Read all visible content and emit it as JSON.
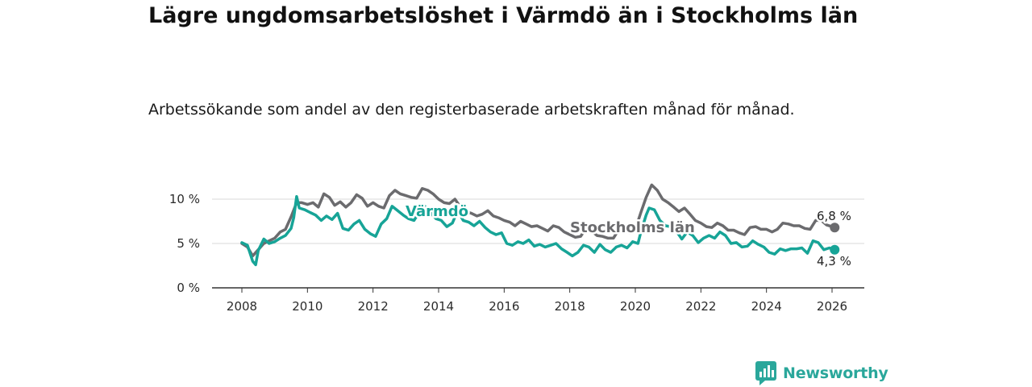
{
  "header": {
    "title": "Lägre ungdomsarbetslöshet i Värmdö än i Stockholms län",
    "subtitle": "Arbetssökande som andel av den registerbaserade arbetskraften månad för månad."
  },
  "brand": {
    "name": "Newsworthy",
    "icon": "newsworthy-logo-icon",
    "color": "#2aa79b"
  },
  "chart_data": {
    "type": "line",
    "title": "Lägre ungdomsarbetslöshet i Värmdö än i Stockholms län",
    "xlabel": "",
    "ylabel": "",
    "xlim": [
      2007.4,
      2027.0
    ],
    "ylim": [
      0,
      11
    ],
    "x_ticks": [
      2008,
      2010,
      2012,
      2014,
      2016,
      2018,
      2020,
      2022,
      2024,
      2026
    ],
    "x_tick_labels": [
      "2008",
      "2010",
      "2012",
      "2014",
      "2016",
      "2018",
      "2020",
      "2022",
      "2024",
      "2026"
    ],
    "y_ticks": [
      0,
      5,
      10
    ],
    "y_tick_labels": [
      "0 %",
      "5 %",
      "10 %"
    ],
    "grid": true,
    "series": [
      {
        "name": "Stockholms län",
        "label": "Stockholms län",
        "color": "#6b6b6e",
        "end_label": "6,8 %",
        "points": [
          [
            2008.0,
            5.0
          ],
          [
            2008.17,
            4.6
          ],
          [
            2008.33,
            3.6
          ],
          [
            2008.5,
            4.3
          ],
          [
            2008.67,
            5.0
          ],
          [
            2008.83,
            5.3
          ],
          [
            2009.0,
            5.6
          ],
          [
            2009.17,
            6.3
          ],
          [
            2009.33,
            6.6
          ],
          [
            2009.5,
            8.0
          ],
          [
            2009.67,
            9.6
          ],
          [
            2009.83,
            9.6
          ],
          [
            2010.0,
            9.4
          ],
          [
            2010.17,
            9.6
          ],
          [
            2010.33,
            9.1
          ],
          [
            2010.5,
            10.6
          ],
          [
            2010.67,
            10.2
          ],
          [
            2010.83,
            9.3
          ],
          [
            2011.0,
            9.7
          ],
          [
            2011.17,
            9.1
          ],
          [
            2011.33,
            9.6
          ],
          [
            2011.5,
            10.5
          ],
          [
            2011.67,
            10.1
          ],
          [
            2011.83,
            9.2
          ],
          [
            2012.0,
            9.6
          ],
          [
            2012.17,
            9.2
          ],
          [
            2012.33,
            9.0
          ],
          [
            2012.5,
            10.4
          ],
          [
            2012.67,
            11.0
          ],
          [
            2012.83,
            10.6
          ],
          [
            2013.0,
            10.4
          ],
          [
            2013.17,
            10.2
          ],
          [
            2013.33,
            10.1
          ],
          [
            2013.5,
            11.2
          ],
          [
            2013.67,
            11.0
          ],
          [
            2013.83,
            10.6
          ],
          [
            2014.0,
            10.0
          ],
          [
            2014.17,
            9.6
          ],
          [
            2014.33,
            9.5
          ],
          [
            2014.5,
            10.0
          ],
          [
            2014.67,
            9.1
          ],
          [
            2014.83,
            8.6
          ],
          [
            2015.0,
            8.4
          ],
          [
            2015.17,
            8.1
          ],
          [
            2015.33,
            8.3
          ],
          [
            2015.5,
            8.7
          ],
          [
            2015.67,
            8.1
          ],
          [
            2015.83,
            7.9
          ],
          [
            2016.0,
            7.6
          ],
          [
            2016.17,
            7.4
          ],
          [
            2016.33,
            7.0
          ],
          [
            2016.5,
            7.5
          ],
          [
            2016.67,
            7.2
          ],
          [
            2016.83,
            6.9
          ],
          [
            2017.0,
            7.0
          ],
          [
            2017.17,
            6.7
          ],
          [
            2017.33,
            6.4
          ],
          [
            2017.5,
            7.0
          ],
          [
            2017.67,
            6.8
          ],
          [
            2017.83,
            6.3
          ],
          [
            2018.0,
            6.0
          ],
          [
            2018.17,
            5.7
          ],
          [
            2018.33,
            5.8
          ],
          [
            2018.5,
            6.7
          ],
          [
            2018.67,
            6.4
          ],
          [
            2018.83,
            5.9
          ],
          [
            2019.0,
            5.8
          ],
          [
            2019.17,
            5.6
          ],
          [
            2019.33,
            5.6
          ],
          [
            2019.5,
            6.6
          ],
          [
            2019.67,
            6.5
          ],
          [
            2019.83,
            6.2
          ],
          [
            2020.0,
            6.6
          ],
          [
            2020.17,
            8.5
          ],
          [
            2020.33,
            10.2
          ],
          [
            2020.5,
            11.6
          ],
          [
            2020.67,
            11.0
          ],
          [
            2020.83,
            10.0
          ],
          [
            2021.0,
            9.6
          ],
          [
            2021.17,
            9.1
          ],
          [
            2021.33,
            8.6
          ],
          [
            2021.5,
            9.0
          ],
          [
            2021.67,
            8.3
          ],
          [
            2021.83,
            7.6
          ],
          [
            2022.0,
            7.3
          ],
          [
            2022.17,
            6.9
          ],
          [
            2022.33,
            6.8
          ],
          [
            2022.5,
            7.3
          ],
          [
            2022.67,
            7.0
          ],
          [
            2022.83,
            6.5
          ],
          [
            2023.0,
            6.5
          ],
          [
            2023.17,
            6.2
          ],
          [
            2023.33,
            6.0
          ],
          [
            2023.5,
            6.8
          ],
          [
            2023.67,
            6.9
          ],
          [
            2023.83,
            6.6
          ],
          [
            2024.0,
            6.6
          ],
          [
            2024.17,
            6.3
          ],
          [
            2024.33,
            6.6
          ],
          [
            2024.5,
            7.3
          ],
          [
            2024.67,
            7.2
          ],
          [
            2024.83,
            7.0
          ],
          [
            2025.0,
            7.0
          ],
          [
            2025.17,
            6.7
          ],
          [
            2025.33,
            6.6
          ],
          [
            2025.5,
            7.6
          ],
          [
            2025.67,
            7.6
          ],
          [
            2025.83,
            7.1
          ],
          [
            2026.08,
            6.8
          ]
        ]
      },
      {
        "name": "Värmdö",
        "label": "Värmdö",
        "color": "#17a497",
        "end_label": "4,3 %",
        "points": [
          [
            2008.0,
            5.1
          ],
          [
            2008.17,
            4.8
          ],
          [
            2008.33,
            3.0
          ],
          [
            2008.42,
            2.6
          ],
          [
            2008.5,
            4.2
          ],
          [
            2008.67,
            5.5
          ],
          [
            2008.83,
            5.0
          ],
          [
            2009.0,
            5.2
          ],
          [
            2009.17,
            5.6
          ],
          [
            2009.33,
            5.9
          ],
          [
            2009.5,
            6.7
          ],
          [
            2009.58,
            7.9
          ],
          [
            2009.67,
            10.3
          ],
          [
            2009.75,
            9.0
          ],
          [
            2009.92,
            8.8
          ],
          [
            2010.08,
            8.5
          ],
          [
            2010.25,
            8.2
          ],
          [
            2010.42,
            7.6
          ],
          [
            2010.58,
            8.1
          ],
          [
            2010.75,
            7.7
          ],
          [
            2010.92,
            8.4
          ],
          [
            2011.08,
            6.7
          ],
          [
            2011.25,
            6.5
          ],
          [
            2011.42,
            7.2
          ],
          [
            2011.58,
            7.6
          ],
          [
            2011.75,
            6.6
          ],
          [
            2011.92,
            6.1
          ],
          [
            2012.08,
            5.8
          ],
          [
            2012.25,
            7.2
          ],
          [
            2012.42,
            7.8
          ],
          [
            2012.58,
            9.2
          ],
          [
            2012.75,
            8.7
          ],
          [
            2012.92,
            8.2
          ],
          [
            2013.08,
            7.8
          ],
          [
            2013.25,
            7.6
          ],
          [
            2013.42,
            8.6
          ],
          [
            2013.58,
            9.2
          ],
          [
            2013.75,
            8.5
          ],
          [
            2013.92,
            7.8
          ],
          [
            2014.08,
            7.6
          ],
          [
            2014.25,
            6.9
          ],
          [
            2014.42,
            7.3
          ],
          [
            2014.58,
            8.7
          ],
          [
            2014.75,
            7.6
          ],
          [
            2014.92,
            7.4
          ],
          [
            2015.08,
            7.0
          ],
          [
            2015.25,
            7.5
          ],
          [
            2015.42,
            6.8
          ],
          [
            2015.58,
            6.3
          ],
          [
            2015.75,
            6.0
          ],
          [
            2015.92,
            6.2
          ],
          [
            2016.08,
            5.0
          ],
          [
            2016.25,
            4.8
          ],
          [
            2016.42,
            5.2
          ],
          [
            2016.58,
            5.0
          ],
          [
            2016.75,
            5.4
          ],
          [
            2016.92,
            4.7
          ],
          [
            2017.08,
            4.9
          ],
          [
            2017.25,
            4.6
          ],
          [
            2017.42,
            4.8
          ],
          [
            2017.58,
            5.0
          ],
          [
            2017.75,
            4.4
          ],
          [
            2017.92,
            4.0
          ],
          [
            2018.08,
            3.6
          ],
          [
            2018.25,
            4.0
          ],
          [
            2018.42,
            4.8
          ],
          [
            2018.58,
            4.6
          ],
          [
            2018.75,
            4.0
          ],
          [
            2018.92,
            4.9
          ],
          [
            2019.08,
            4.3
          ],
          [
            2019.25,
            4.0
          ],
          [
            2019.42,
            4.6
          ],
          [
            2019.58,
            4.8
          ],
          [
            2019.75,
            4.5
          ],
          [
            2019.92,
            5.2
          ],
          [
            2020.08,
            5.0
          ],
          [
            2020.17,
            6.3
          ],
          [
            2020.33,
            8.2
          ],
          [
            2020.42,
            9.0
          ],
          [
            2020.58,
            8.8
          ],
          [
            2020.75,
            7.6
          ],
          [
            2020.92,
            7.0
          ],
          [
            2021.08,
            6.9
          ],
          [
            2021.25,
            6.4
          ],
          [
            2021.42,
            5.5
          ],
          [
            2021.58,
            6.3
          ],
          [
            2021.75,
            5.9
          ],
          [
            2021.92,
            5.1
          ],
          [
            2022.08,
            5.6
          ],
          [
            2022.25,
            5.9
          ],
          [
            2022.42,
            5.6
          ],
          [
            2022.58,
            6.3
          ],
          [
            2022.75,
            5.9
          ],
          [
            2022.92,
            5.0
          ],
          [
            2023.08,
            5.1
          ],
          [
            2023.25,
            4.6
          ],
          [
            2023.42,
            4.7
          ],
          [
            2023.58,
            5.3
          ],
          [
            2023.75,
            4.9
          ],
          [
            2023.92,
            4.6
          ],
          [
            2024.08,
            4.0
          ],
          [
            2024.25,
            3.8
          ],
          [
            2024.42,
            4.4
          ],
          [
            2024.58,
            4.2
          ],
          [
            2024.75,
            4.4
          ],
          [
            2024.92,
            4.4
          ],
          [
            2025.08,
            4.5
          ],
          [
            2025.25,
            3.9
          ],
          [
            2025.42,
            5.3
          ],
          [
            2025.58,
            5.1
          ],
          [
            2025.75,
            4.3
          ],
          [
            2025.92,
            4.5
          ],
          [
            2026.08,
            4.3
          ]
        ]
      }
    ]
  }
}
